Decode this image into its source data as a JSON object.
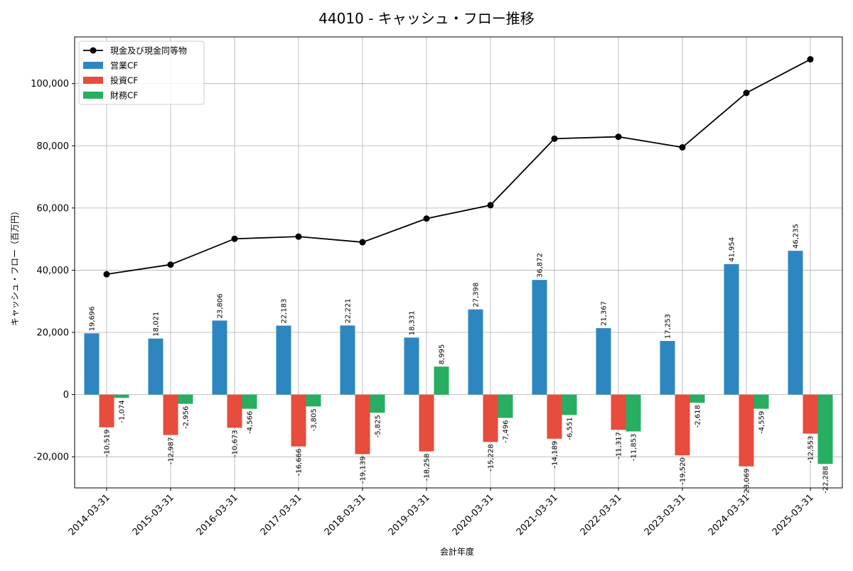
{
  "chart_data": {
    "type": "bar",
    "title": "44010 - キャッシュ・フロー推移",
    "xlabel": "会計年度",
    "ylabel": "キャッシュ・フロー（百万円）",
    "ylim": [
      -30000,
      115000
    ],
    "yticks": [
      -20000,
      0,
      20000,
      40000,
      60000,
      80000,
      100000
    ],
    "ytick_labels": [
      "-20,000",
      "0",
      "20,000",
      "40,000",
      "60,000",
      "80,000",
      "100,000"
    ],
    "grid": true,
    "legend_position": "top-left",
    "categories": [
      "2014-03-31",
      "2015-03-31",
      "2016-03-31",
      "2017-03-31",
      "2018-03-31",
      "2019-03-31",
      "2020-03-31",
      "2021-03-31",
      "2022-03-31",
      "2023-03-31",
      "2024-03-31",
      "2025-03-31"
    ],
    "line_series": {
      "name": "現金及び現金同等物",
      "color": "#000000",
      "values": [
        38700,
        41800,
        50100,
        50800,
        49000,
        56600,
        60900,
        82300,
        82900,
        79500,
        97000,
        107800
      ]
    },
    "series": [
      {
        "name": "営業CF",
        "color": "#2e86c1",
        "values": [
          19696,
          18021,
          23806,
          22183,
          22221,
          18331,
          27398,
          36872,
          21367,
          17253,
          41954,
          46235
        ],
        "labels": [
          "19,696",
          "18,021",
          "23,806",
          "22,183",
          "22,221",
          "18,331",
          "27,398",
          "36,872",
          "21,367",
          "17,253",
          "41,954",
          "46,235"
        ]
      },
      {
        "name": "投資CF",
        "color": "#e74c3c",
        "values": [
          -10519,
          -12987,
          -10673,
          -16666,
          -19139,
          -18258,
          -15228,
          -14189,
          -11317,
          -19520,
          -23069,
          -12553
        ],
        "labels": [
          "-10,519",
          "-12,987",
          "-10,673",
          "-16,666",
          "-19,139",
          "-18,258",
          "-15,228",
          "-14,189",
          "-11,317",
          "-19,520",
          "-23,069",
          "-12,553"
        ]
      },
      {
        "name": "財務CF",
        "color": "#27ae60",
        "values": [
          -1074,
          -2956,
          -4566,
          -3805,
          -5825,
          8995,
          -7496,
          -6551,
          -11853,
          -2618,
          -4559,
          -22288
        ],
        "labels": [
          "-1,074",
          "-2,956",
          "-4,566",
          "-3,805",
          "-5,825",
          "8,995",
          "-7,496",
          "-6,551",
          "-11,853",
          "-2,618",
          "-4,559",
          "-22,288"
        ]
      }
    ]
  }
}
